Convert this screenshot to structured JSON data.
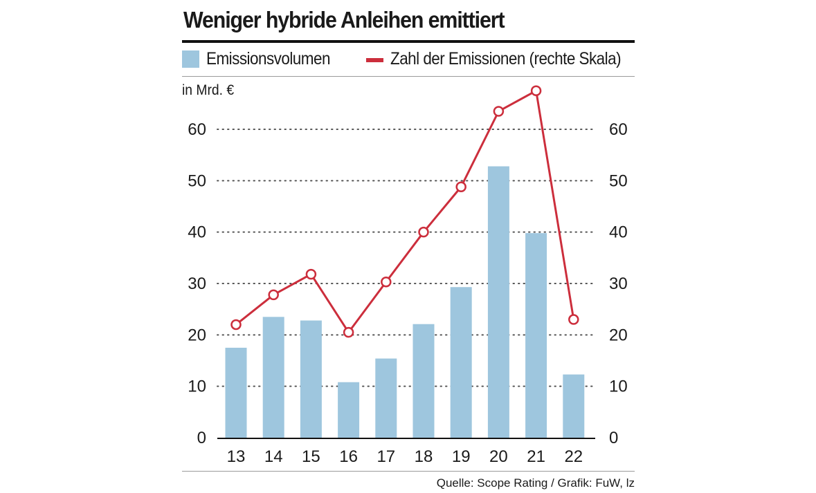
{
  "chart_data": {
    "type": "bar",
    "title": "Weniger hybride Anleihen emittiert",
    "unit_label": "in Mrd. €",
    "categories": [
      "13",
      "14",
      "15",
      "16",
      "17",
      "18",
      "19",
      "20",
      "21",
      "22"
    ],
    "ylim": [
      0,
      60
    ],
    "yticks": [
      0,
      10,
      20,
      30,
      40,
      50,
      60
    ],
    "y2lim": [
      0,
      60
    ],
    "y2ticks": [
      0,
      10,
      20,
      30,
      40,
      50,
      60
    ],
    "grid": "dotted horizontal",
    "legend_position": "top",
    "series": [
      {
        "name": "Emissionsvolumen",
        "kind": "bar",
        "axis": "left",
        "color": "#9ec6de",
        "values": [
          17.5,
          23.5,
          22.8,
          10.8,
          15.4,
          22.1,
          29.3,
          52.8,
          39.8,
          12.3
        ]
      },
      {
        "name": "Zahl der Emissionen (rechte Skala)",
        "kind": "line",
        "axis": "right",
        "color": "#cc2e3c",
        "values": [
          22,
          27.8,
          31.8,
          20.5,
          30.3,
          40,
          48.8,
          63.5,
          67.5,
          23
        ]
      }
    ]
  },
  "source": "Quelle: Scope Rating / Grafik: FuW, lz",
  "colors": {
    "bar": "#9ec6de",
    "line": "#cc2e3c",
    "text": "#1a1a1a",
    "grid": "#555555"
  }
}
